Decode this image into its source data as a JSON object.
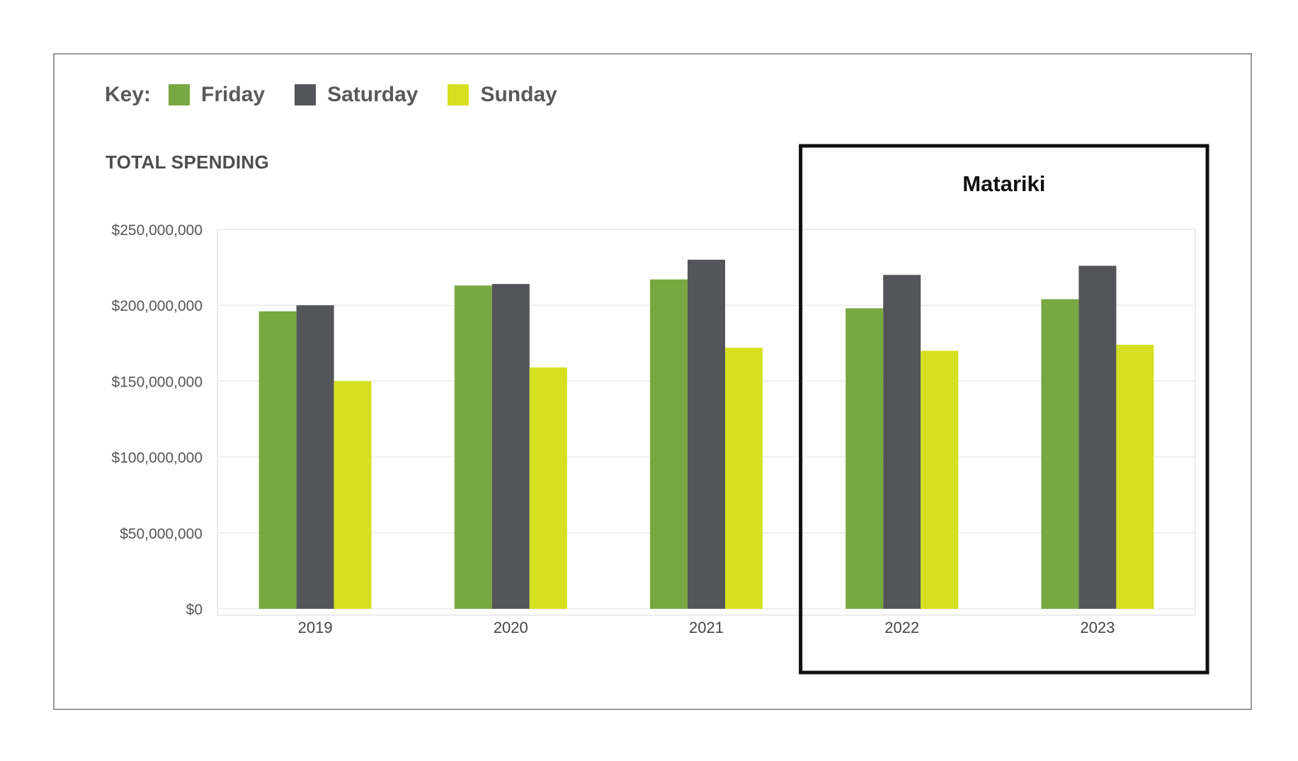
{
  "legend": {
    "title": "Key:",
    "items": [
      {
        "label": "Friday",
        "color": "#78a841"
      },
      {
        "label": "Saturday",
        "color": "#545558"
      },
      {
        "label": "Sunday",
        "color": "#d6e021"
      }
    ]
  },
  "chart_data": {
    "type": "bar",
    "title": "TOTAL SPENDING",
    "categories": [
      "2019",
      "2020",
      "2021",
      "2022",
      "2023"
    ],
    "series": [
      {
        "name": "Friday",
        "color": "#78a841",
        "values": [
          196000000,
          213000000,
          217000000,
          198000000,
          204000000
        ]
      },
      {
        "name": "Saturday",
        "color": "#545558",
        "values": [
          200000000,
          214000000,
          230000000,
          220000000,
          226000000
        ]
      },
      {
        "name": "Sunday",
        "color": "#d6e021",
        "values": [
          150000000,
          159000000,
          172000000,
          170000000,
          174000000
        ]
      }
    ],
    "ylim": [
      0,
      250000000
    ],
    "y_ticks": [
      0,
      50000000,
      100000000,
      150000000,
      200000000,
      250000000
    ],
    "y_tick_labels": [
      "$0",
      "$50,000,000",
      "$100,000,000",
      "$150,000,000",
      "$200,000,000",
      "$250,000,000"
    ],
    "grid": true,
    "legend_position": "top-left",
    "annotation": {
      "label": "Matariki",
      "categories": [
        "2022",
        "2023"
      ]
    }
  }
}
